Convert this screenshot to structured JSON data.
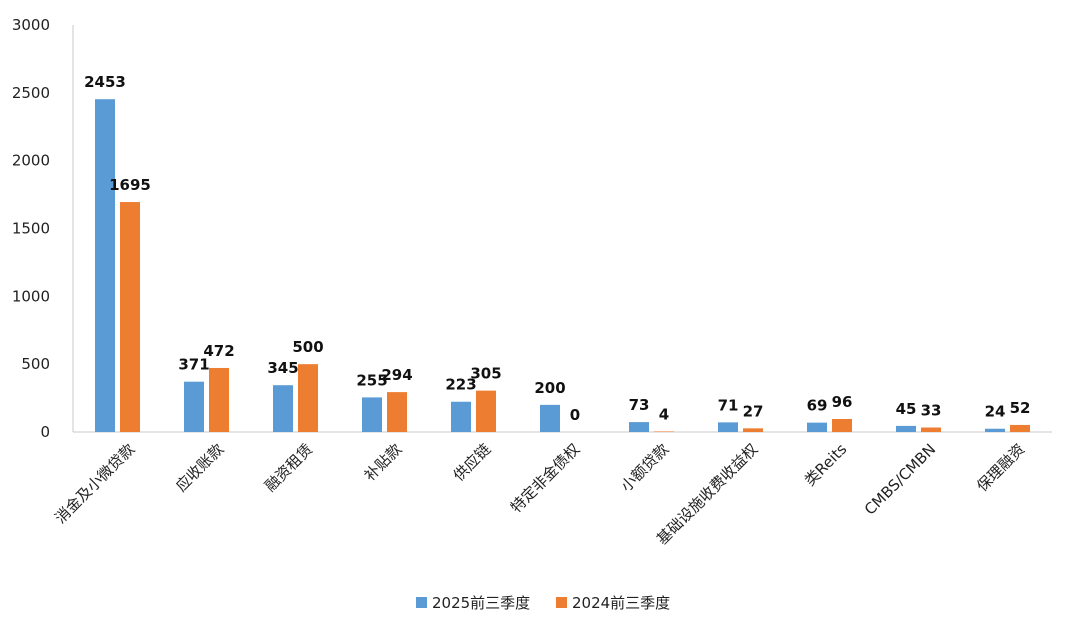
{
  "chart_data": {
    "type": "bar",
    "title": "",
    "xlabel": "",
    "ylabel": "",
    "ylim": [
      0,
      3000
    ],
    "yticks": [
      0,
      500,
      1000,
      1500,
      2000,
      2500,
      3000
    ],
    "grid": false,
    "legend_position": "bottom-center",
    "categories": [
      "消金及小微贷款",
      "应收账款",
      "融资租赁",
      "补贴款",
      "供应链",
      "特定非金债权",
      "小额贷款",
      "基础设施收费收益权",
      "类Reits",
      "CMBS/CMBN",
      "保理融资"
    ],
    "series": [
      {
        "name": "2025前三季度",
        "color": "#5B9BD5",
        "values": [
          2453,
          371,
          345,
          255,
          223,
          200,
          73,
          71,
          69,
          45,
          24
        ]
      },
      {
        "name": "2024前三季度",
        "color": "#ED7D31",
        "values": [
          1695,
          472,
          500,
          294,
          305,
          0,
          4,
          27,
          96,
          33,
          52
        ]
      }
    ]
  }
}
